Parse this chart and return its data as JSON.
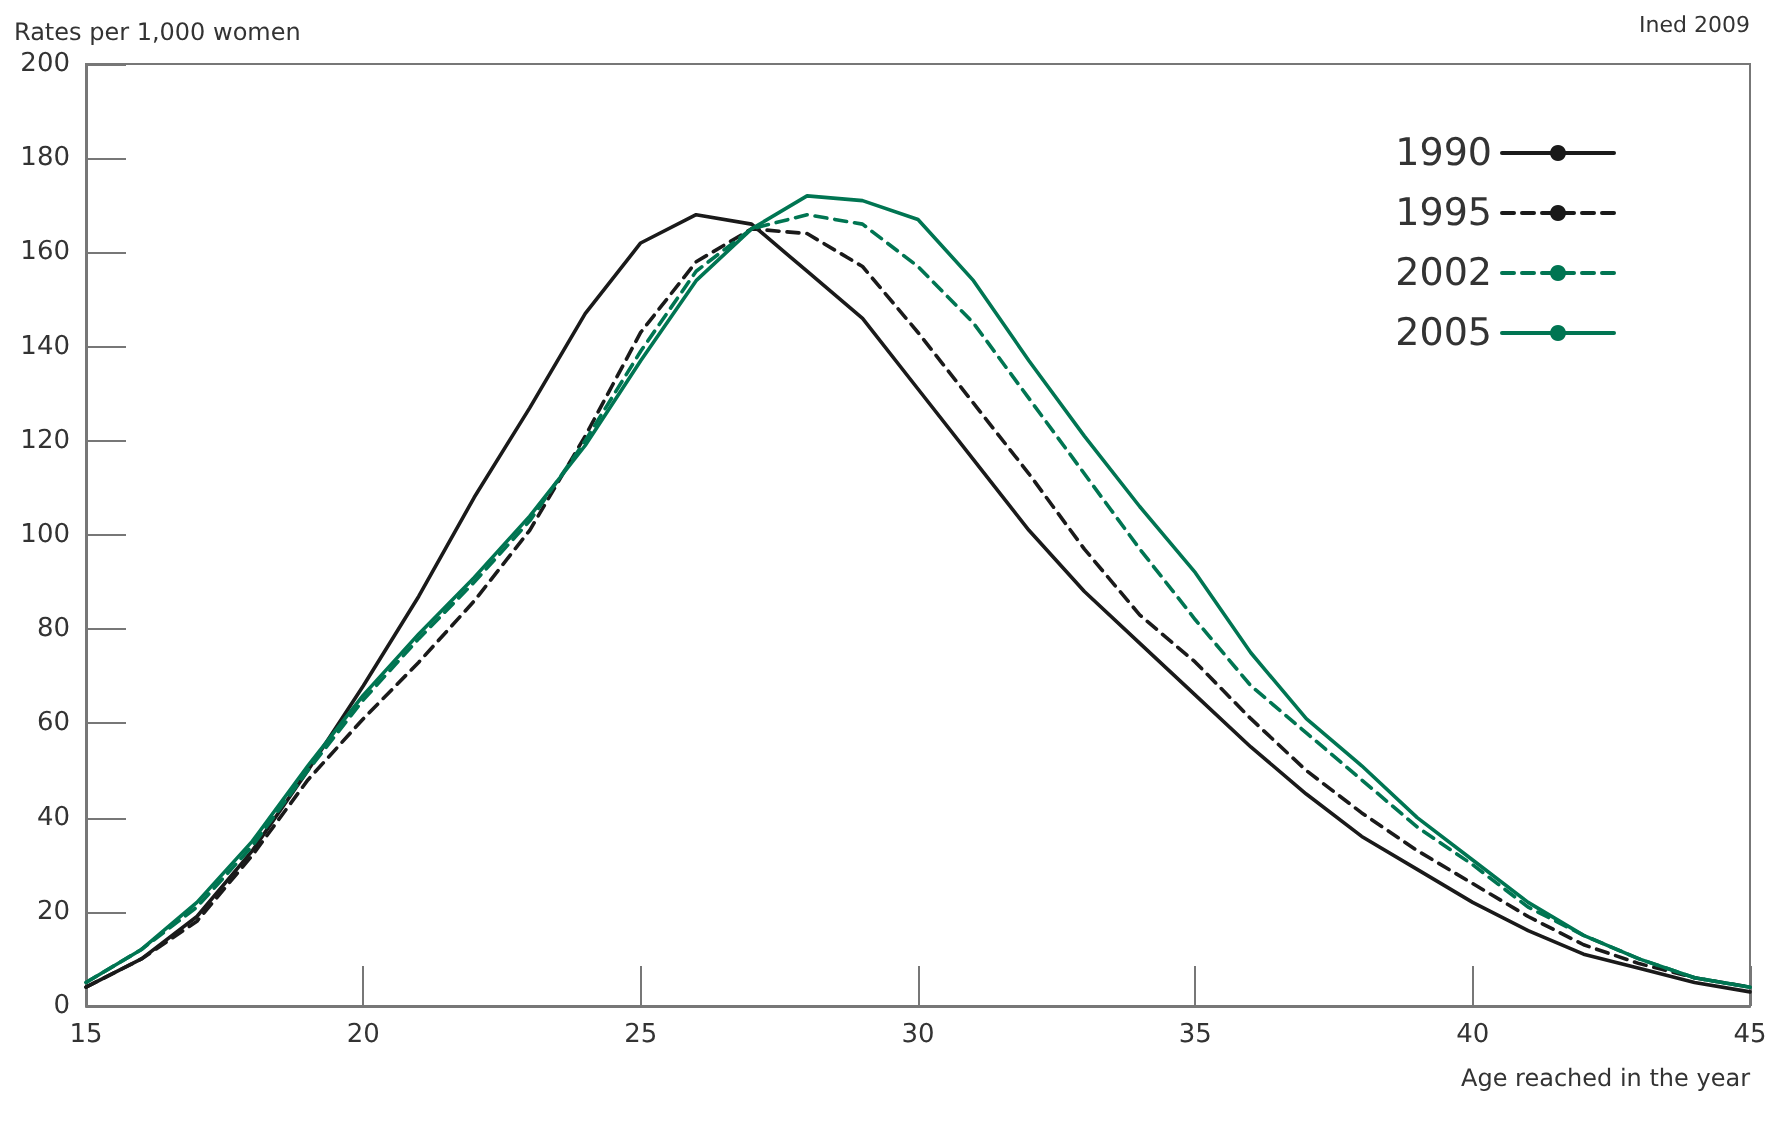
{
  "chart_data": {
    "type": "line",
    "ylabel": "Rates per 1,000 women",
    "xlabel": "Age reached in the year",
    "annotations": [
      "Ined 2009"
    ],
    "x": [
      15,
      16,
      17,
      18,
      19,
      20,
      21,
      22,
      23,
      24,
      25,
      26,
      27,
      28,
      29,
      30,
      31,
      32,
      33,
      34,
      35,
      36,
      37,
      38,
      39,
      40,
      41,
      42,
      43,
      44,
      45
    ],
    "xlim": [
      15,
      45
    ],
    "xticks": [
      15,
      20,
      25,
      30,
      35,
      40,
      45
    ],
    "ylim": [
      0,
      200
    ],
    "yticks": [
      0,
      20,
      40,
      60,
      80,
      100,
      120,
      140,
      160,
      180,
      200
    ],
    "grid": false,
    "legend": "top right",
    "marker": "none",
    "series": [
      {
        "name": "1990",
        "color": "#1a1a1a",
        "line_style": "solid",
        "values": [
          4,
          10,
          19,
          33,
          50,
          68,
          87,
          108,
          127,
          147,
          162,
          168,
          166,
          156,
          146,
          131,
          116,
          101,
          88,
          77,
          66,
          55,
          45,
          36,
          29,
          22,
          16,
          11,
          8,
          5,
          3
        ]
      },
      {
        "name": "1995",
        "color": "#1a1a1a",
        "line_style": "dashed",
        "values": [
          4,
          10,
          18,
          32,
          48,
          61,
          73,
          86,
          101,
          121,
          143,
          158,
          165,
          164,
          157,
          143,
          128,
          113,
          97,
          83,
          73,
          61,
          50,
          41,
          33,
          26,
          19,
          13,
          9,
          6,
          4
        ]
      },
      {
        "name": "2002",
        "color": "#007552",
        "line_style": "dashed",
        "values": [
          5,
          12,
          21,
          34,
          50,
          65,
          78,
          90,
          103,
          120,
          139,
          156,
          165,
          168,
          166,
          157,
          145,
          129,
          113,
          97,
          82,
          68,
          58,
          48,
          38,
          30,
          21,
          15,
          10,
          6,
          4
        ]
      },
      {
        "name": "2005",
        "color": "#007552",
        "line_style": "solid",
        "values": [
          5,
          12,
          22,
          35,
          51,
          66,
          79,
          91,
          104,
          119,
          137,
          154,
          165,
          172,
          171,
          167,
          154,
          137,
          121,
          106,
          92,
          75,
          61,
          51,
          40,
          31,
          22,
          15,
          10,
          6,
          4
        ]
      }
    ]
  }
}
